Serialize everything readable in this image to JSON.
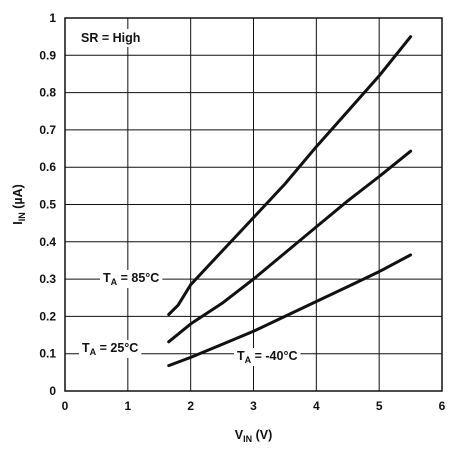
{
  "chart_data": {
    "type": "line",
    "xlabel": {
      "main": "V",
      "sub": "IN",
      "unit": " (V)"
    },
    "ylabel": {
      "main": "I",
      "sub": "IN",
      "unit": " (µA)"
    },
    "xlim": [
      0,
      6
    ],
    "ylim": [
      0,
      1
    ],
    "x_ticks": [
      "0",
      "1",
      "2",
      "3",
      "4",
      "5",
      "6"
    ],
    "y_ticks": [
      "0",
      "0.1",
      "0.2",
      "0.3",
      "0.4",
      "0.5",
      "0.6",
      "0.7",
      "0.8",
      "0.9",
      "1"
    ],
    "grid": true,
    "annotation": "SR = High",
    "series": [
      {
        "label": {
          "main": "T",
          "sub": "A",
          "rest": " = 85°C"
        },
        "x": [
          1.65,
          1.8,
          2.0,
          2.5,
          3.0,
          3.5,
          4.0,
          4.5,
          5.0,
          5.5
        ],
        "y": [
          0.205,
          0.23,
          0.285,
          0.375,
          0.465,
          0.555,
          0.655,
          0.75,
          0.845,
          0.95
        ]
      },
      {
        "label": {
          "main": "T",
          "sub": "A",
          "rest": " = 25°C"
        },
        "x": [
          1.65,
          2.0,
          2.5,
          3.0,
          3.5,
          4.0,
          4.5,
          5.0,
          5.5
        ],
        "y": [
          0.132,
          0.18,
          0.235,
          0.3,
          0.37,
          0.44,
          0.51,
          0.575,
          0.643
        ]
      },
      {
        "label": {
          "main": "T",
          "sub": "A",
          "rest": " = -40°C"
        },
        "x": [
          1.65,
          2.0,
          2.5,
          3.0,
          3.5,
          4.0,
          4.5,
          5.0,
          5.5
        ],
        "y": [
          0.068,
          0.09,
          0.125,
          0.16,
          0.2,
          0.24,
          0.28,
          0.32,
          0.365
        ]
      }
    ]
  }
}
